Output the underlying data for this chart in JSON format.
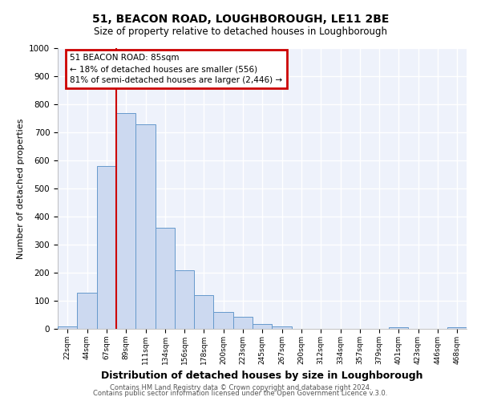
{
  "title": "51, BEACON ROAD, LOUGHBOROUGH, LE11 2BE",
  "subtitle": "Size of property relative to detached houses in Loughborough",
  "xlabel": "Distribution of detached houses by size in Loughborough",
  "ylabel": "Number of detached properties",
  "bar_color": "#ccd9f0",
  "bar_edge_color": "#6699cc",
  "background_color": "#eef2fb",
  "plot_bg_color": "#eef2fb",
  "annotation_box_color": "#ffffff",
  "annotation_border_color": "#cc0000",
  "vline_color": "#cc0000",
  "vline_x": 89,
  "annotation_title": "51 BEACON ROAD: 85sqm",
  "annotation_line1": "← 18% of detached houses are smaller (556)",
  "annotation_line2": "81% of semi-detached houses are larger (2,446) →",
  "categories": [
    "22sqm",
    "44sqm",
    "67sqm",
    "89sqm",
    "111sqm",
    "134sqm",
    "156sqm",
    "178sqm",
    "200sqm",
    "223sqm",
    "245sqm",
    "267sqm",
    "290sqm",
    "312sqm",
    "334sqm",
    "357sqm",
    "379sqm",
    "401sqm",
    "423sqm",
    "446sqm",
    "468sqm"
  ],
  "bin_left_edges": [
    22,
    44,
    67,
    89,
    111,
    134,
    156,
    178,
    200,
    223,
    245,
    267,
    290,
    312,
    334,
    357,
    379,
    401,
    423,
    446,
    468
  ],
  "bin_widths": [
    22,
    23,
    22,
    22,
    23,
    22,
    22,
    22,
    23,
    22,
    22,
    23,
    22,
    22,
    23,
    22,
    22,
    22,
    23,
    22,
    22
  ],
  "values": [
    10,
    130,
    580,
    770,
    730,
    360,
    210,
    120,
    60,
    42,
    18,
    10,
    0,
    0,
    0,
    0,
    0,
    5,
    0,
    0,
    5
  ],
  "ylim": [
    0,
    1000
  ],
  "yticks": [
    0,
    100,
    200,
    300,
    400,
    500,
    600,
    700,
    800,
    900,
    1000
  ],
  "footer1": "Contains HM Land Registry data © Crown copyright and database right 2024.",
  "footer2": "Contains public sector information licensed under the Open Government Licence v.3.0."
}
